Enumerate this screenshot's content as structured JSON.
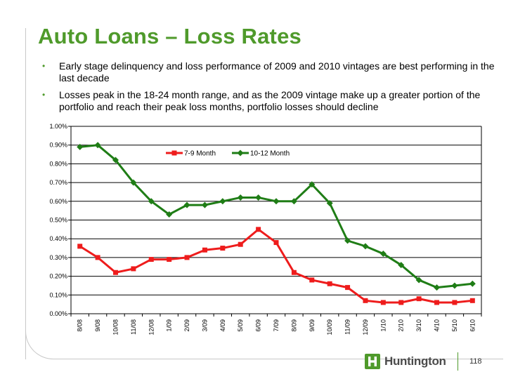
{
  "slide": {
    "title": "Auto Loans – Loss Rates",
    "bullets": [
      "Early stage delinquency and loss performance of 2009 and 2010 vintages are best performing in the last decade",
      "Losses peak in the 18-24 month range, and as the 2009 vintage make up a greater portion of the portfolio and reach their peak loss months, portfolio losses should decline"
    ],
    "brand": "Huntington",
    "page_number": "118",
    "colors": {
      "title": "#4f9a2b",
      "series1": "#ee1c1c",
      "series2": "#1f7d16"
    }
  },
  "chart_data": {
    "type": "line",
    "categories": [
      "8/08",
      "9/08",
      "10/08",
      "11/08",
      "12/08",
      "1/09",
      "2/09",
      "3/09",
      "4/09",
      "5/09",
      "6/09",
      "7/09",
      "8/09",
      "9/09",
      "10/09",
      "11/09",
      "12/09",
      "1/10",
      "2/10",
      "3/10",
      "4/10",
      "5/10",
      "6/10"
    ],
    "y_ticks": [
      "1.00%",
      "0.90%",
      "0.80%",
      "0.70%",
      "0.60%",
      "0.50%",
      "0.40%",
      "0.30%",
      "0.20%",
      "0.10%",
      "0.00%"
    ],
    "ylim": [
      0,
      1.0
    ],
    "y_unit": "%",
    "grid": true,
    "legend_position": "top-center",
    "series": [
      {
        "name": "7-9 Month",
        "color": "#ee1c1c",
        "marker": "square",
        "values": [
          0.36,
          0.3,
          0.22,
          0.24,
          0.29,
          0.29,
          0.3,
          0.34,
          0.35,
          0.37,
          0.45,
          0.38,
          0.22,
          0.18,
          0.16,
          0.14,
          0.07,
          0.06,
          0.06,
          0.08,
          0.06,
          0.06,
          0.07
        ]
      },
      {
        "name": "10-12 Month",
        "color": "#1f7d16",
        "marker": "diamond",
        "values": [
          0.89,
          0.9,
          0.82,
          0.7,
          0.6,
          0.53,
          0.58,
          0.58,
          0.6,
          0.62,
          0.62,
          0.6,
          0.6,
          0.69,
          0.59,
          0.39,
          0.36,
          0.32,
          0.26,
          0.18,
          0.14,
          0.15,
          0.16
        ]
      }
    ]
  }
}
